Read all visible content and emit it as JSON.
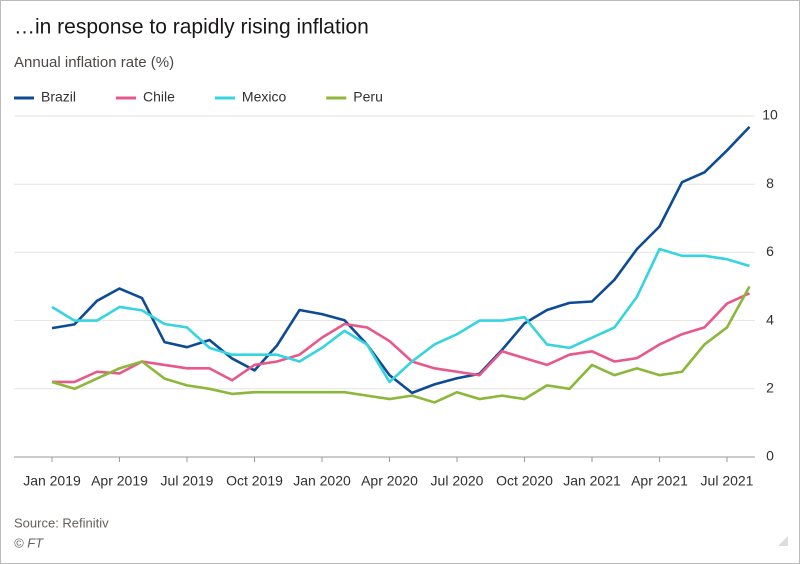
{
  "chart_data": {
    "type": "line",
    "title": "…in response to rapidly rising inflation",
    "subtitle": "Annual inflation rate (%)",
    "source": "Source: Refinitiv",
    "credit": "© FT",
    "categories": [
      "Jan 2019",
      null,
      null,
      "Apr 2019",
      null,
      null,
      "Jul 2019",
      null,
      null,
      "Oct 2019",
      null,
      null,
      "Jan 2020",
      null,
      null,
      "Apr 2020",
      null,
      null,
      "Jul 2020",
      null,
      null,
      "Oct 2020",
      null,
      null,
      "Jan 2021",
      null,
      null,
      "Apr 2021",
      null,
      null,
      "Jul 2021",
      null
    ],
    "series": [
      {
        "name": "Brazil",
        "color": "#0e4b95",
        "values": [
          3.78,
          3.89,
          4.58,
          4.94,
          4.66,
          3.37,
          3.22,
          3.43,
          2.89,
          2.54,
          3.27,
          4.31,
          4.19,
          4.01,
          3.3,
          2.4,
          1.88,
          2.13,
          2.31,
          2.44,
          3.14,
          3.92,
          4.31,
          4.52,
          4.56,
          5.2,
          6.1,
          6.76,
          8.06,
          8.35,
          8.99,
          9.68
        ]
      },
      {
        "name": "Chile",
        "color": "#e8588a",
        "values": [
          2.2,
          2.2,
          2.5,
          2.45,
          2.8,
          2.7,
          2.6,
          2.6,
          2.25,
          2.7,
          2.8,
          3.0,
          3.5,
          3.9,
          3.8,
          3.4,
          2.8,
          2.6,
          2.5,
          2.4,
          3.1,
          2.9,
          2.7,
          3.0,
          3.1,
          2.8,
          2.9,
          3.3,
          3.6,
          3.8,
          4.5,
          4.8
        ]
      },
      {
        "name": "Mexico",
        "color": "#35d4e0",
        "values": [
          4.4,
          4.0,
          4.0,
          4.4,
          4.3,
          3.9,
          3.8,
          3.2,
          3.0,
          3.0,
          3.0,
          2.8,
          3.2,
          3.7,
          3.3,
          2.2,
          2.8,
          3.3,
          3.6,
          4.0,
          4.0,
          4.1,
          3.3,
          3.2,
          3.5,
          3.8,
          4.7,
          6.1,
          5.9,
          5.9,
          5.8,
          5.6
        ]
      },
      {
        "name": "Peru",
        "color": "#8bb83a",
        "values": [
          2.2,
          2.0,
          2.3,
          2.6,
          2.8,
          2.3,
          2.1,
          2.0,
          1.85,
          1.9,
          1.9,
          1.9,
          1.9,
          1.9,
          1.8,
          1.7,
          1.8,
          1.6,
          1.9,
          1.7,
          1.8,
          1.7,
          2.1,
          2.0,
          2.7,
          2.4,
          2.6,
          2.4,
          2.5,
          3.3,
          3.8,
          5.0
        ]
      }
    ],
    "ylim": [
      0,
      10
    ],
    "yticks": [
      0,
      2,
      4,
      6,
      8,
      10
    ],
    "grid": true
  }
}
